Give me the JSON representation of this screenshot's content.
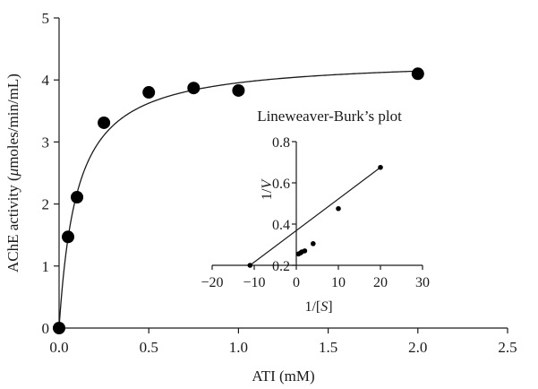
{
  "chart_data": [
    {
      "type": "scatter",
      "xlabel": "ATI (mM)",
      "ylabel_parts": [
        "AChE activity (",
        "μ",
        "moles/min/mL)"
      ],
      "xlim": [
        0,
        2.5
      ],
      "ylim": [
        0,
        5
      ],
      "x_ticks": [
        0,
        0.5,
        1,
        1.5,
        2,
        2.5
      ],
      "x_tick_labels": [
        "0.0",
        "0.5",
        "1.0",
        "1.5",
        "2.0",
        "2.5"
      ],
      "y_ticks": [
        0,
        1,
        2,
        3,
        4,
        5
      ],
      "y_tick_labels": [
        "0",
        "1",
        "2",
        "3",
        "4",
        "5"
      ],
      "grid": false,
      "series": [
        {
          "x": [
            0,
            0.05,
            0.1,
            0.25,
            0.5,
            0.75,
            1.0,
            2.0
          ],
          "y": [
            0,
            1.47,
            2.11,
            3.31,
            3.8,
            3.87,
            3.83,
            4.1
          ],
          "marker": "filled-circle",
          "color": "#000000"
        }
      ],
      "fit_curve": {
        "model": "michaelis-menten",
        "Vmax": 4.35,
        "Km": 0.1
      }
    },
    {
      "type": "scatter",
      "title": "Lineweaver-Burk’s plot",
      "xlabel_parts": [
        "1/[",
        "S",
        "]"
      ],
      "ylabel_parts": [
        "1/",
        "V"
      ],
      "xlim": [
        -20,
        30
      ],
      "ylim": [
        0.2,
        0.8
      ],
      "x_ticks": [
        -20,
        -10,
        0,
        10,
        20,
        30
      ],
      "x_tick_labels": [
        "−20",
        "−10",
        "0",
        "10",
        "20",
        "30"
      ],
      "y_ticks": [
        0.2,
        0.4,
        0.6,
        0.8
      ],
      "y_tick_labels": [
        "0.2",
        "0.4",
        "0.6",
        "0.8"
      ],
      "grid": false,
      "series": [
        {
          "x": [
            -11,
            0.5,
            1,
            1.3,
            2,
            4,
            10,
            20
          ],
          "y": [
            0.2,
            0.255,
            0.26,
            0.265,
            0.27,
            0.305,
            0.475,
            0.675
          ],
          "marker": "small-dot",
          "color": "#000000"
        }
      ],
      "fit_line": {
        "x_range": [
          -11,
          20
        ]
      }
    }
  ]
}
